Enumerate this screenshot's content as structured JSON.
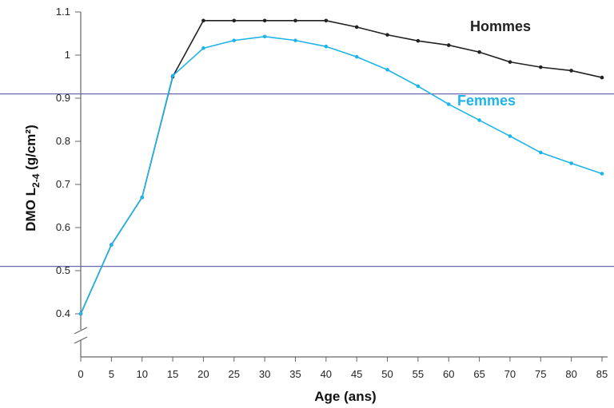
{
  "chart_data": {
    "type": "line",
    "title": "",
    "xlabel": "Age (ans)",
    "ylabel": {
      "prefix": "DMO L",
      "subscript": "2-4",
      "suffix": " (g/cm²)"
    },
    "x": [
      0,
      5,
      10,
      15,
      20,
      25,
      30,
      35,
      40,
      45,
      50,
      55,
      60,
      65,
      70,
      75,
      80,
      85
    ],
    "x_ticks": [
      "0",
      "5",
      "10",
      "15",
      "20",
      "25",
      "30",
      "35",
      "40",
      "45",
      "50",
      "55",
      "60",
      "65",
      "70",
      "75",
      "80",
      "85"
    ],
    "y_ticks": [
      {
        "value": 0.4,
        "label": "0.4"
      },
      {
        "value": 0.5,
        "label": "0.5"
      },
      {
        "value": 0.6,
        "label": "0.6"
      },
      {
        "value": 0.7,
        "label": "0.7"
      },
      {
        "value": 0.8,
        "label": "0.8"
      },
      {
        "value": 0.9,
        "label": "0.9"
      },
      {
        "value": 1.0,
        "label": "1"
      },
      {
        "value": 1.1,
        "label": "1.1"
      }
    ],
    "xlim": [
      0,
      85
    ],
    "ylim": [
      0.4,
      1.1
    ],
    "axis_break": true,
    "grid": false,
    "reference_lines": [
      0.51,
      0.91
    ],
    "reference_line_color": "#6b6bb0",
    "series": [
      {
        "name": "Hommes",
        "color": "#222222",
        "values": [
          0.4,
          0.56,
          0.67,
          0.95,
          1.08,
          1.08,
          1.08,
          1.08,
          1.08,
          1.065,
          1.047,
          1.033,
          1.023,
          1.007,
          0.984,
          0.972,
          0.964,
          0.948
        ]
      },
      {
        "name": "Femmes",
        "color": "#1fb4e8",
        "values": [
          0.4,
          0.56,
          0.67,
          0.952,
          1.016,
          1.034,
          1.043,
          1.034,
          1.02,
          0.996,
          0.966,
          0.928,
          0.886,
          0.849,
          0.812,
          0.774,
          0.749,
          0.725
        ]
      }
    ]
  }
}
